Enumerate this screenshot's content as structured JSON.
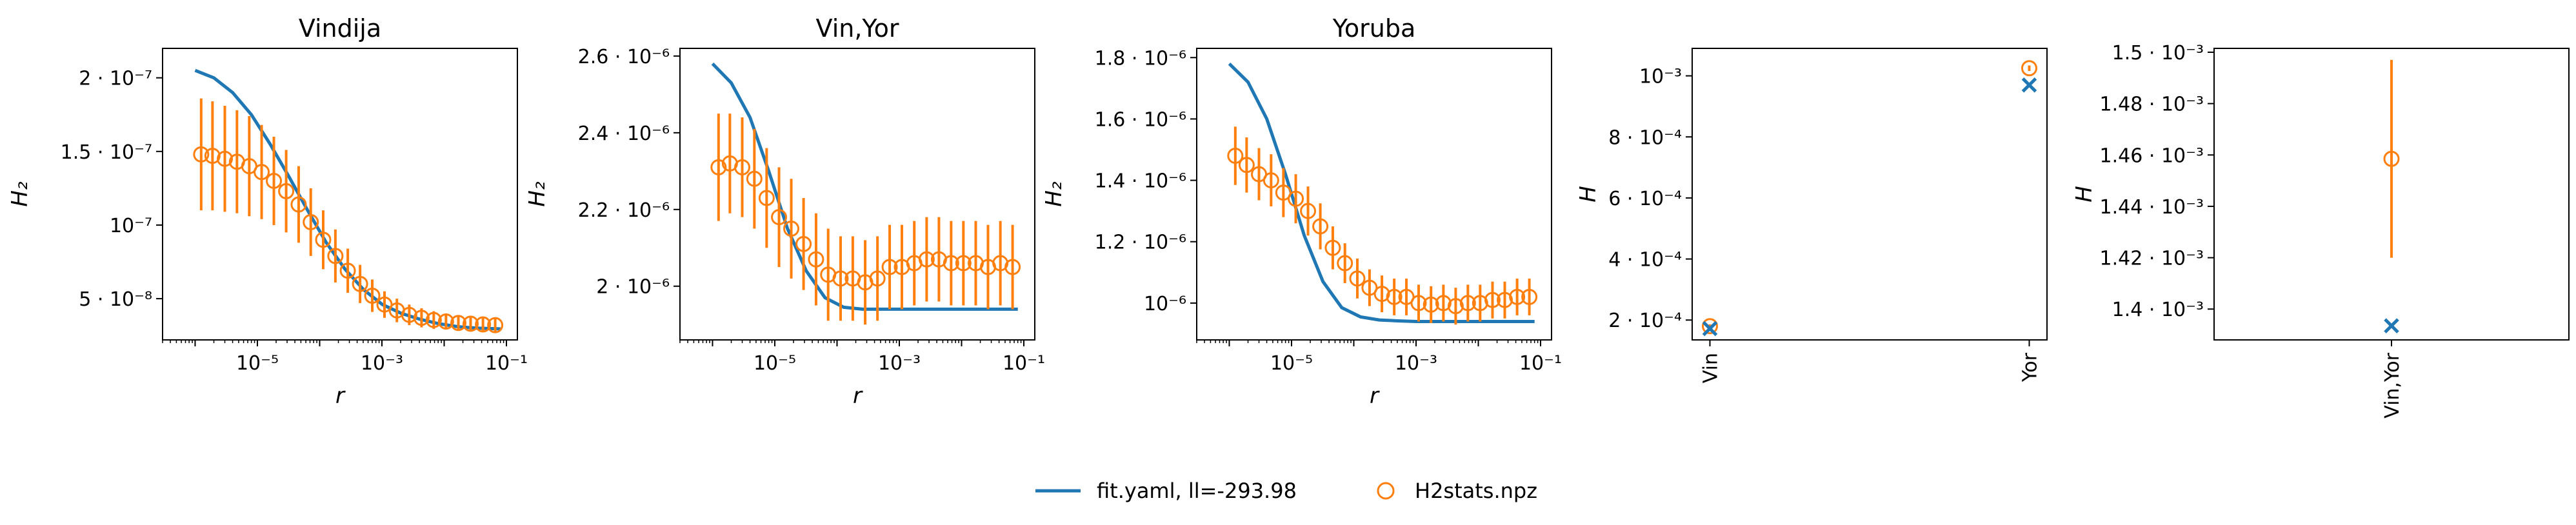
{
  "colors": {
    "model": "#1f77b4",
    "data": "#ff7f0e"
  },
  "legend": {
    "model_label": "fit.yaml, ll=-293.98",
    "data_label": "H2stats.npz"
  },
  "chart_data": [
    {
      "type": "line",
      "title": "Vindija",
      "xlabel": "r",
      "ylabel": "H₂",
      "xscale": "log",
      "xlim": [
        3e-07,
        0.15
      ],
      "ylim": [
        2.2e-08,
        2.2e-07
      ],
      "x_ticks": [
        {
          "value": 1e-05,
          "label": "10⁻⁵"
        },
        {
          "value": 0.001,
          "label": "10⁻³"
        },
        {
          "value": 0.1,
          "label": "10⁻¹"
        }
      ],
      "y_ticks": [
        {
          "value": 5e-08,
          "label": "5 · 10⁻⁸"
        },
        {
          "value": 1e-07,
          "label": "10⁻⁷"
        },
        {
          "value": 1.5e-07,
          "label": "1.5 · 10⁻⁷"
        },
        {
          "value": 2e-07,
          "label": "2 · 10⁻⁷"
        }
      ],
      "model": {
        "x": [
          1e-06,
          2e-06,
          4e-06,
          8e-06,
          1.6e-05,
          3.2e-05,
          6.4e-05,
          0.000128,
          0.000256,
          0.000512,
          0.00102,
          0.00205,
          0.0041,
          0.0082,
          0.0164,
          0.0328,
          0.08
        ],
        "y": [
          2.05e-07,
          2e-07,
          1.9e-07,
          1.75e-07,
          1.55e-07,
          1.33e-07,
          1.1e-07,
          8.8e-08,
          7e-08,
          5.6e-08,
          4.6e-08,
          4e-08,
          3.6e-08,
          3.3e-08,
          3.1e-08,
          3e-08,
          2.95e-08
        ]
      },
      "data": {
        "x": [
          1.25e-06,
          1.9e-06,
          3e-06,
          4.7e-06,
          7.4e-06,
          1.17e-05,
          1.84e-05,
          2.9e-05,
          4.6e-05,
          7.2e-05,
          0.000114,
          0.000179,
          0.000283,
          0.000446,
          0.0007,
          0.0011,
          0.00174,
          0.00275,
          0.00433,
          0.0068,
          0.0107,
          0.0169,
          0.0266,
          0.042,
          0.066
        ],
        "y": [
          1.48e-07,
          1.47e-07,
          1.45e-07,
          1.43e-07,
          1.4e-07,
          1.36e-07,
          1.3e-07,
          1.23e-07,
          1.14e-07,
          1.02e-07,
          9e-08,
          7.9e-08,
          6.9e-08,
          6e-08,
          5.2e-08,
          4.6e-08,
          4.2e-08,
          3.9e-08,
          3.7e-08,
          3.55e-08,
          3.45e-08,
          3.35e-08,
          3.3e-08,
          3.25e-08,
          3.2e-08
        ],
        "err": [
          3.8e-08,
          3.7e-08,
          3.6e-08,
          3.5e-08,
          3.4e-08,
          3.2e-08,
          3e-08,
          2.8e-08,
          2.6e-08,
          2.3e-08,
          2e-08,
          1.8e-08,
          1.5e-08,
          1.3e-08,
          1.1e-08,
          9e-09,
          8e-09,
          7e-09,
          6.5e-09,
          6e-09,
          5.5e-09,
          5e-09,
          5e-09,
          4.5e-09,
          4.5e-09
        ]
      }
    },
    {
      "type": "line",
      "title": "Vin,Yor",
      "xlabel": "r",
      "ylabel": "H₂",
      "xscale": "log",
      "xlim": [
        3e-07,
        0.15
      ],
      "ylim": [
        1.86e-06,
        2.62e-06
      ],
      "x_ticks": [
        {
          "value": 1e-05,
          "label": "10⁻⁵"
        },
        {
          "value": 0.001,
          "label": "10⁻³"
        },
        {
          "value": 0.1,
          "label": "10⁻¹"
        }
      ],
      "y_ticks": [
        {
          "value": 2e-06,
          "label": "2 · 10⁻⁶"
        },
        {
          "value": 2.2e-06,
          "label": "2.2 · 10⁻⁶"
        },
        {
          "value": 2.4e-06,
          "label": "2.4 · 10⁻⁶"
        },
        {
          "value": 2.6e-06,
          "label": "2.6 · 10⁻⁶"
        }
      ],
      "model": {
        "x": [
          1e-06,
          2e-06,
          4e-06,
          8e-06,
          1.6e-05,
          3.2e-05,
          6.4e-05,
          0.000128,
          0.000256,
          0.000512,
          0.00102,
          0.00205,
          0.0041,
          0.0082,
          0.0164,
          0.0328,
          0.08
        ],
        "y": [
          2.58e-06,
          2.53e-06,
          2.44e-06,
          2.3e-06,
          2.15e-06,
          2.04e-06,
          1.97e-06,
          1.945e-06,
          1.94e-06,
          1.94e-06,
          1.94e-06,
          1.94e-06,
          1.94e-06,
          1.94e-06,
          1.94e-06,
          1.94e-06,
          1.94e-06
        ]
      },
      "data": {
        "x": [
          1.25e-06,
          1.9e-06,
          3e-06,
          4.7e-06,
          7.4e-06,
          1.17e-05,
          1.84e-05,
          2.9e-05,
          4.6e-05,
          7.2e-05,
          0.000114,
          0.000179,
          0.000283,
          0.000446,
          0.0007,
          0.0011,
          0.00174,
          0.00275,
          0.00433,
          0.0068,
          0.0107,
          0.0169,
          0.0266,
          0.042,
          0.066
        ],
        "y": [
          2.31e-06,
          2.32e-06,
          2.31e-06,
          2.28e-06,
          2.23e-06,
          2.18e-06,
          2.15e-06,
          2.11e-06,
          2.07e-06,
          2.03e-06,
          2.02e-06,
          2.02e-06,
          2.01e-06,
          2.02e-06,
          2.05e-06,
          2.05e-06,
          2.06e-06,
          2.07e-06,
          2.07e-06,
          2.06e-06,
          2.06e-06,
          2.06e-06,
          2.05e-06,
          2.06e-06,
          2.05e-06
        ]
      },
      "data_err": [
        1.4e-07,
        1.3e-07,
        1.3e-07,
        1.3e-07,
        1.3e-07,
        1.3e-07,
        1.3e-07,
        1.2e-07,
        1.2e-07,
        1.2e-07,
        1.1e-07,
        1.1e-07,
        1.1e-07,
        1.1e-07,
        1.1e-07,
        1.1e-07,
        1.1e-07,
        1.1e-07,
        1.1e-07,
        1.1e-07,
        1.1e-07,
        1.1e-07,
        1.1e-07,
        1.1e-07,
        1.1e-07
      ]
    },
    {
      "type": "line",
      "title": "Yoruba",
      "xlabel": "r",
      "ylabel": "H₂",
      "xscale": "log",
      "xlim": [
        3e-07,
        0.15
      ],
      "ylim": [
        8.8e-07,
        1.83e-06
      ],
      "x_ticks": [
        {
          "value": 1e-05,
          "label": "10⁻⁵"
        },
        {
          "value": 0.001,
          "label": "10⁻³"
        },
        {
          "value": 0.1,
          "label": "10⁻¹"
        }
      ],
      "y_ticks": [
        {
          "value": 1e-06,
          "label": "10⁻⁶"
        },
        {
          "value": 1.2e-06,
          "label": "1.2 · 10⁻⁶"
        },
        {
          "value": 1.4e-06,
          "label": "1.4 · 10⁻⁶"
        },
        {
          "value": 1.6e-06,
          "label": "1.6 · 10⁻⁶"
        },
        {
          "value": 1.8e-06,
          "label": "1.8 · 10⁻⁶"
        }
      ],
      "model": {
        "x": [
          1e-06,
          2e-06,
          4e-06,
          8e-06,
          1.6e-05,
          3.2e-05,
          6.4e-05,
          0.000128,
          0.000256,
          0.000512,
          0.00102,
          0.00205,
          0.0041,
          0.0082,
          0.0164,
          0.0328,
          0.08
        ],
        "y": [
          1.78e-06,
          1.72e-06,
          1.6e-06,
          1.42e-06,
          1.22e-06,
          1.07e-06,
          9.85e-07,
          9.55e-07,
          9.45e-07,
          9.42e-07,
          9.4e-07,
          9.4e-07,
          9.4e-07,
          9.4e-07,
          9.4e-07,
          9.4e-07,
          9.4e-07
        ]
      },
      "data": {
        "x": [
          1.25e-06,
          1.9e-06,
          3e-06,
          4.7e-06,
          7.4e-06,
          1.17e-05,
          1.84e-05,
          2.9e-05,
          4.6e-05,
          7.2e-05,
          0.000114,
          0.000179,
          0.000283,
          0.000446,
          0.0007,
          0.0011,
          0.00174,
          0.00275,
          0.00433,
          0.0068,
          0.0107,
          0.0169,
          0.0266,
          0.042,
          0.066
        ],
        "y": [
          1.48e-06,
          1.45e-06,
          1.42e-06,
          1.4e-06,
          1.36e-06,
          1.34e-06,
          1.3e-06,
          1.25e-06,
          1.18e-06,
          1.13e-06,
          1.08e-06,
          1.05e-06,
          1.03e-06,
          1.02e-06,
          1.02e-06,
          1e-06,
          9.95e-07,
          1e-06,
          9.9e-07,
          1e-06,
          1e-06,
          1.01e-06,
          1.01e-06,
          1.02e-06,
          1.02e-06
        ]
      },
      "data_err": [
        9.5e-08,
        9e-08,
        8.5e-08,
        8.5e-08,
        8e-08,
        8e-08,
        8e-08,
        7.5e-08,
        7e-08,
        6.5e-08,
        6.5e-08,
        6e-08,
        6e-08,
        6e-08,
        6e-08,
        6e-08,
        6e-08,
        6e-08,
        6e-08,
        6e-08,
        6e-08,
        6e-08,
        6e-08,
        6e-08,
        6e-08
      ]
    },
    {
      "type": "scatter",
      "title": "",
      "xlabel": "",
      "ylabel": "H",
      "categories": [
        "Vin",
        "Yor"
      ],
      "ylim": [
        0.000135,
        0.00109
      ],
      "y_ticks": [
        {
          "value": 0.0002,
          "label": "2 · 10⁻⁴"
        },
        {
          "value": 0.0004,
          "label": "4 · 10⁻⁴"
        },
        {
          "value": 0.0006,
          "label": "6 · 10⁻⁴"
        },
        {
          "value": 0.0008,
          "label": "8 · 10⁻⁴"
        },
        {
          "value": 0.001,
          "label": "10⁻³"
        }
      ],
      "model_values": [
        0.000172,
        0.00097
      ],
      "data_values": [
        0.00018,
        0.001025
      ],
      "data_err": [
        6e-06,
        9e-06
      ]
    },
    {
      "type": "scatter",
      "title": "",
      "xlabel": "",
      "ylabel": "H",
      "categories": [
        "Vin,Yor"
      ],
      "ylim": [
        0.001388,
        0.0015015
      ],
      "y_ticks": [
        {
          "value": 0.0014,
          "label": "1.4 · 10⁻³"
        },
        {
          "value": 0.00142,
          "label": "1.42 · 10⁻³"
        },
        {
          "value": 0.00144,
          "label": "1.44 · 10⁻³"
        },
        {
          "value": 0.00146,
          "label": "1.46 · 10⁻³"
        },
        {
          "value": 0.00148,
          "label": "1.48 · 10⁻³"
        },
        {
          "value": 0.0015,
          "label": "1.5 · 10⁻³"
        }
      ],
      "model_values": [
        0.0013935
      ],
      "data_values": [
        0.0014585
      ],
      "data_err": [
        3.85e-05
      ]
    }
  ]
}
